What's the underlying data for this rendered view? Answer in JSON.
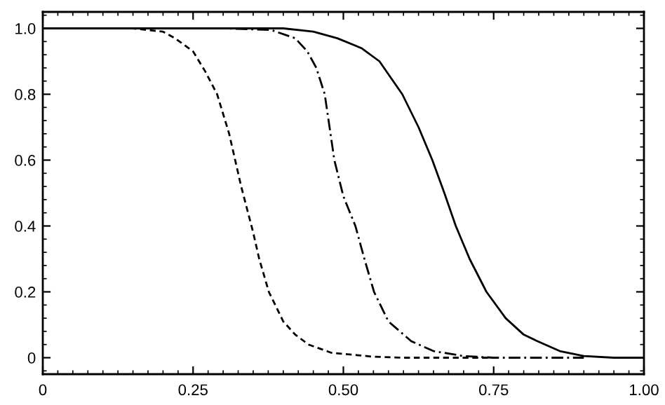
{
  "chart_data": {
    "type": "line",
    "xlim": [
      0,
      1
    ],
    "ylim": [
      -0.05,
      1.05
    ],
    "xticks": [
      0,
      0.25,
      {
        "value": 0.5,
        "label": "0.50"
      },
      0.75,
      {
        "value": 1.0,
        "label": "1.00"
      }
    ],
    "yticks": [
      0,
      0.2,
      0.4,
      0.6,
      0.8,
      {
        "value": 1,
        "label": "1.0"
      }
    ],
    "marker": "none",
    "series": [
      {
        "color": "#000000",
        "line_style": "dashed",
        "x": [
          0,
          0.15,
          0.2,
          0.22,
          0.25,
          0.27,
          0.29,
          0.31,
          0.32,
          0.33,
          0.34,
          0.35,
          0.36,
          0.376,
          0.4,
          0.42,
          0.442,
          0.48,
          0.55,
          0.6,
          0.75
        ],
        "values": [
          1,
          1,
          0.99,
          0.97,
          0.93,
          0.87,
          0.8,
          0.68,
          0.6,
          0.52,
          0.45,
          0.38,
          0.3,
          0.2,
          0.11,
          0.07,
          0.04,
          0.015,
          0.003,
          0,
          0
        ]
      },
      {
        "color": "#000000",
        "line_style": "dashdot",
        "x": [
          0,
          0.3,
          0.38,
          0.42,
          0.44,
          0.455,
          0.469,
          0.485,
          0.5,
          0.52,
          0.535,
          0.551,
          0.575,
          0.613,
          0.65,
          0.7,
          0.75,
          0.9
        ],
        "values": [
          1,
          1,
          0.995,
          0.97,
          0.93,
          0.88,
          0.8,
          0.6,
          0.49,
          0.4,
          0.3,
          0.2,
          0.11,
          0.05,
          0.02,
          0.005,
          0,
          0
        ]
      },
      {
        "color": "#000000",
        "line_style": "solid",
        "x": [
          0,
          0.4,
          0.45,
          0.49,
          0.53,
          0.56,
          0.598,
          0.625,
          0.648,
          0.668,
          0.687,
          0.71,
          0.738,
          0.77,
          0.8,
          0.823,
          0.86,
          0.9,
          0.95,
          1.0
        ],
        "values": [
          1,
          1,
          0.99,
          0.97,
          0.94,
          0.9,
          0.8,
          0.7,
          0.6,
          0.5,
          0.4,
          0.3,
          0.2,
          0.12,
          0.07,
          0.05,
          0.02,
          0.005,
          0,
          0
        ]
      }
    ]
  }
}
